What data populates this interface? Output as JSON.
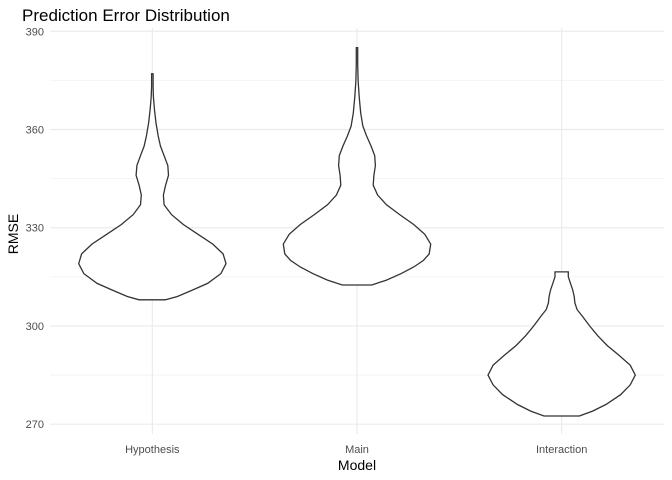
{
  "chart_data": {
    "type": "violin",
    "title": "Prediction Error Distribution",
    "xlabel": "Model",
    "ylabel": "RMSE",
    "categories": [
      "Hypothesis",
      "Main",
      "Interaction"
    ],
    "ylim": [
      267,
      391
    ],
    "yticks": [
      270,
      300,
      330,
      360,
      390
    ],
    "yminor": [
      285,
      315,
      345,
      375
    ],
    "grid": true,
    "legend": "none",
    "series": [
      {
        "category": "Hypothesis",
        "profile": [
          [
            308.0,
            0.18
          ],
          [
            309.0,
            0.34
          ],
          [
            311.0,
            0.55
          ],
          [
            313.0,
            0.75
          ],
          [
            316.0,
            0.93
          ],
          [
            319.0,
            1.0
          ],
          [
            322.0,
            0.96
          ],
          [
            325.0,
            0.82
          ],
          [
            328.0,
            0.62
          ],
          [
            331.0,
            0.42
          ],
          [
            334.0,
            0.26
          ],
          [
            337.0,
            0.16
          ],
          [
            340.0,
            0.15
          ],
          [
            343.0,
            0.18
          ],
          [
            346.0,
            0.22
          ],
          [
            349.0,
            0.21
          ],
          [
            352.0,
            0.16
          ],
          [
            355.0,
            0.11
          ],
          [
            358.0,
            0.08
          ],
          [
            362.0,
            0.05
          ],
          [
            366.0,
            0.03
          ],
          [
            370.0,
            0.015
          ],
          [
            373.0,
            0.01
          ],
          [
            377.0,
            0.01
          ]
        ]
      },
      {
        "category": "Main",
        "profile": [
          [
            312.5,
            0.2
          ],
          [
            314.0,
            0.4
          ],
          [
            316.0,
            0.6
          ],
          [
            318.0,
            0.77
          ],
          [
            320.0,
            0.9
          ],
          [
            322.0,
            0.98
          ],
          [
            325.0,
            1.0
          ],
          [
            328.0,
            0.92
          ],
          [
            331.0,
            0.77
          ],
          [
            334.0,
            0.58
          ],
          [
            337.0,
            0.4
          ],
          [
            340.0,
            0.28
          ],
          [
            343.0,
            0.22
          ],
          [
            346.0,
            0.23
          ],
          [
            349.0,
            0.25
          ],
          [
            352.0,
            0.24
          ],
          [
            355.0,
            0.19
          ],
          [
            358.0,
            0.13
          ],
          [
            361.0,
            0.08
          ],
          [
            365.0,
            0.05
          ],
          [
            370.0,
            0.03
          ],
          [
            375.0,
            0.015
          ],
          [
            380.0,
            0.01
          ],
          [
            385.0,
            0.01
          ]
        ]
      },
      {
        "category": "Interaction",
        "profile": [
          [
            272.5,
            0.24
          ],
          [
            274.0,
            0.42
          ],
          [
            276.0,
            0.6
          ],
          [
            279.0,
            0.8
          ],
          [
            282.0,
            0.93
          ],
          [
            285.0,
            1.0
          ],
          [
            288.0,
            0.93
          ],
          [
            291.0,
            0.78
          ],
          [
            294.0,
            0.62
          ],
          [
            297.0,
            0.49
          ],
          [
            300.0,
            0.38
          ],
          [
            303.0,
            0.28
          ],
          [
            305.0,
            0.21
          ],
          [
            307.0,
            0.18
          ],
          [
            309.0,
            0.17
          ],
          [
            311.0,
            0.15
          ],
          [
            313.0,
            0.12
          ],
          [
            315.0,
            0.09
          ],
          [
            316.5,
            0.09
          ]
        ]
      }
    ]
  }
}
